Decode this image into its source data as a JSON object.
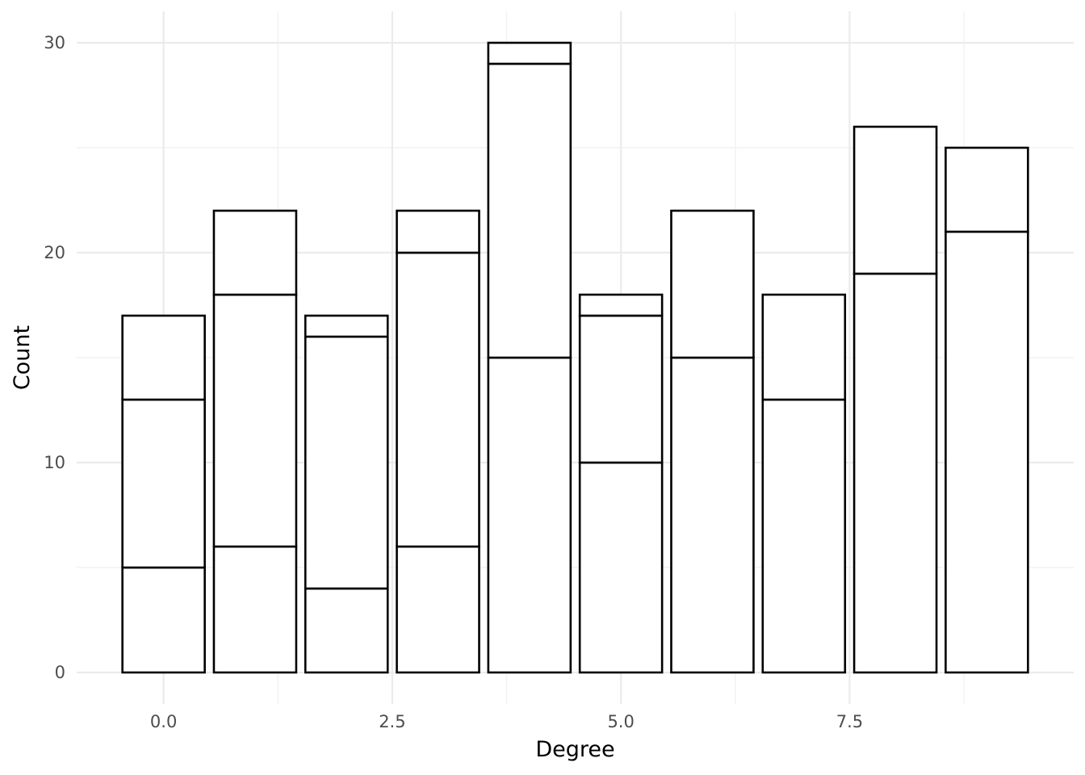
{
  "chart_data": {
    "type": "bar",
    "stacked": true,
    "title": "",
    "xlabel": "Degree",
    "ylabel": "Count",
    "xlim": [
      -0.95,
      9.95
    ],
    "ylim": [
      -1.5,
      31.5
    ],
    "x_ticks": [
      0.0,
      2.5,
      5.0,
      7.5
    ],
    "x_tick_labels": [
      "0.0",
      "2.5",
      "5.0",
      "7.5"
    ],
    "y_ticks": [
      0,
      10,
      20,
      30
    ],
    "y_tick_labels": [
      "0",
      "10",
      "20",
      "30"
    ],
    "grid": true,
    "legend": "none",
    "fill_color": "#ffffff",
    "outline_color": "#000000",
    "bar_width": 0.9,
    "bars": [
      {
        "x": 0,
        "stack": [
          5,
          8,
          4
        ],
        "total": 17
      },
      {
        "x": 1,
        "stack": [
          6,
          12,
          4
        ],
        "total": 22
      },
      {
        "x": 2,
        "stack": [
          4,
          12,
          1
        ],
        "total": 17
      },
      {
        "x": 3,
        "stack": [
          6,
          14,
          2
        ],
        "total": 22
      },
      {
        "x": 4,
        "stack": [
          15,
          14,
          1
        ],
        "total": 30
      },
      {
        "x": 5,
        "stack": [
          10,
          7,
          1
        ],
        "total": 18
      },
      {
        "x": 6,
        "stack": [
          15,
          7
        ],
        "total": 22
      },
      {
        "x": 7,
        "stack": [
          13,
          5
        ],
        "total": 18
      },
      {
        "x": 8,
        "stack": [
          19,
          7
        ],
        "total": 26
      },
      {
        "x": 9,
        "stack": [
          21,
          4
        ],
        "total": 25
      }
    ]
  }
}
